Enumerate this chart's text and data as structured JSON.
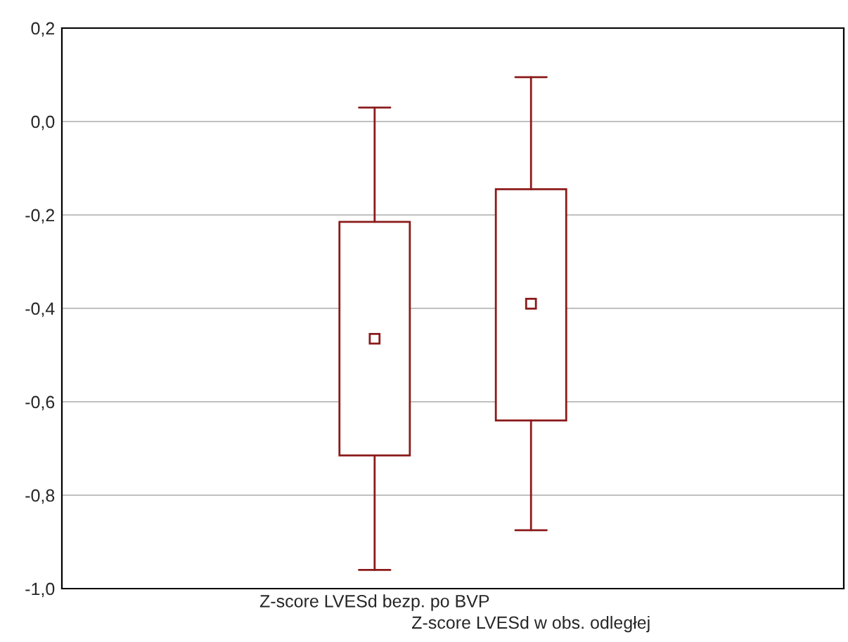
{
  "chart_data": {
    "type": "box",
    "categories": [
      null,
      "Z-score LVESd bezp. po BVP",
      "Z-score LVESd w obs. odległej",
      null
    ],
    "boxes": [
      null,
      {
        "low": -0.96,
        "q1": -0.715,
        "median": -0.465,
        "q3": -0.215,
        "high": 0.03
      },
      {
        "low": -0.875,
        "q1": -0.64,
        "median": -0.39,
        "q3": -0.145,
        "high": 0.095
      },
      null
    ],
    "color": "#8b1a1a",
    "marker": "square",
    "ylim": [
      -1.0,
      0.2
    ],
    "yticks": [
      {
        "value": -1.0,
        "label": "-1,0"
      },
      {
        "value": -0.8,
        "label": "-0,8"
      },
      {
        "value": -0.6,
        "label": "-0,6"
      },
      {
        "value": -0.4,
        "label": "-0,4"
      },
      {
        "value": -0.2,
        "label": "-0,2"
      },
      {
        "value": 0.0,
        "label": "0,0"
      },
      {
        "value": 0.2,
        "label": "0,2"
      }
    ],
    "grid": "y"
  }
}
